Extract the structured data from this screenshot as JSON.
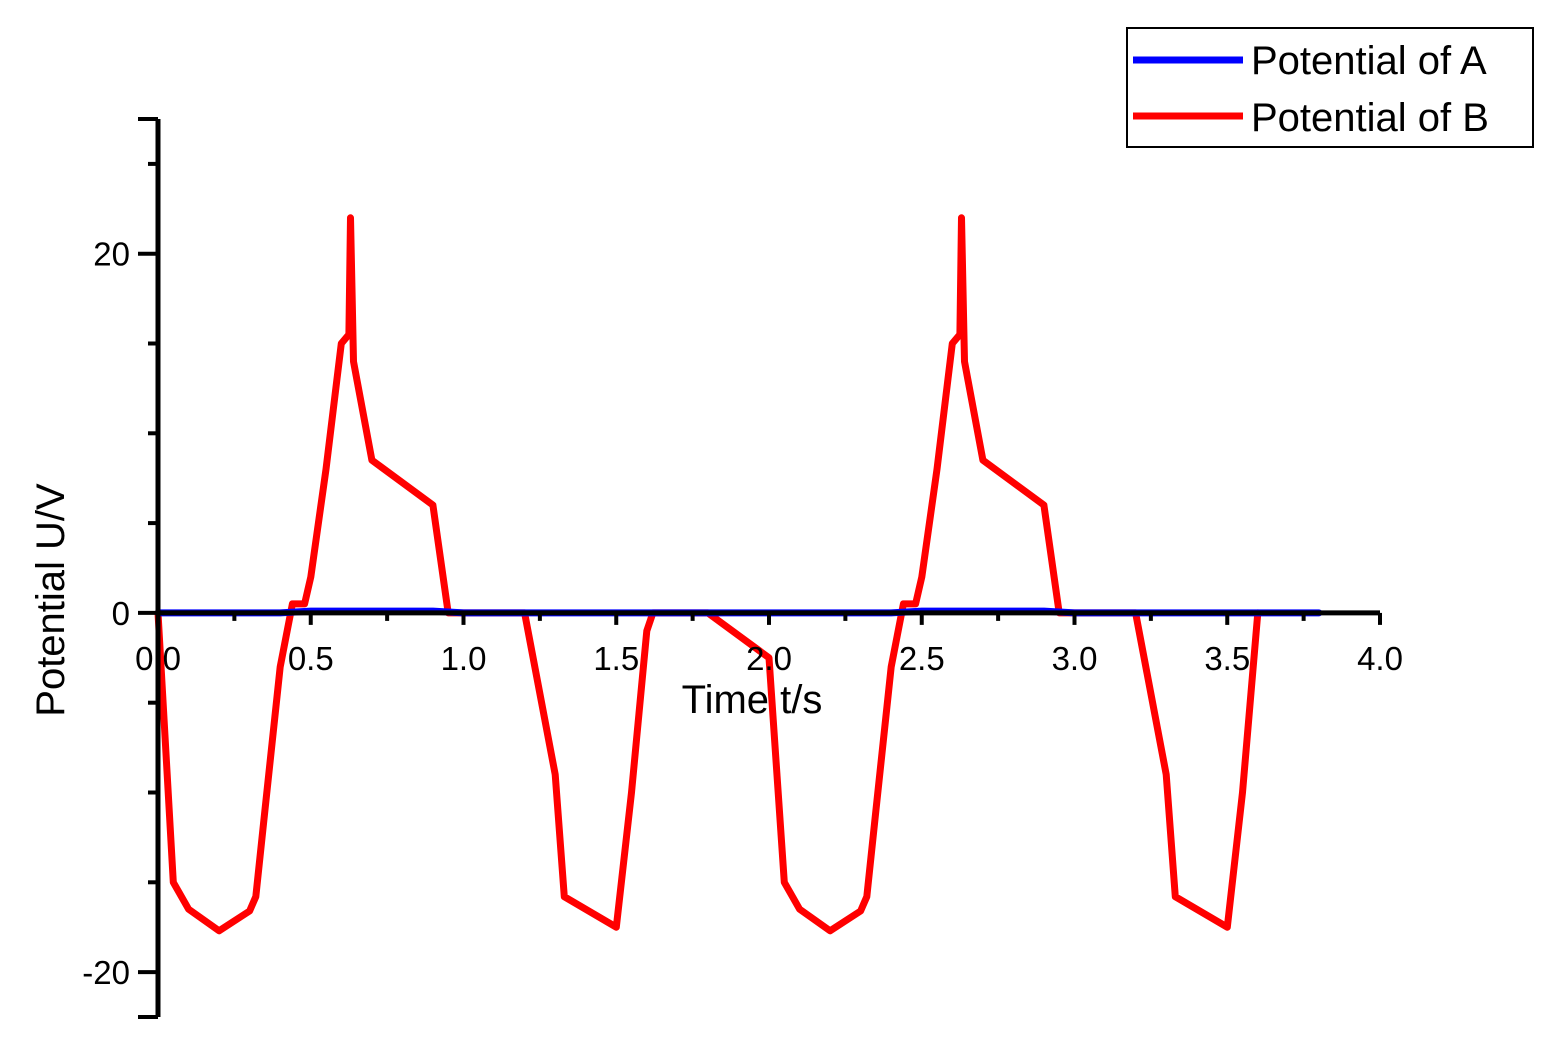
{
  "chart_data": {
    "type": "line",
    "xlabel": "Time t/s",
    "ylabel": "Potential U/V",
    "xlim": [
      0.0,
      4.0
    ],
    "ylim": [
      -22.5,
      27.5
    ],
    "x_ticks": [
      0.0,
      0.5,
      1.0,
      1.5,
      2.0,
      2.5,
      3.0,
      3.5,
      4.0
    ],
    "x_tick_labels": [
      "0.0",
      "0.5",
      "1.0",
      "1.5",
      "2.0",
      "2.5",
      "3.0",
      "3.5",
      "4.0"
    ],
    "y_ticks": [
      -20,
      0,
      20
    ],
    "y_tick_labels": [
      "-20",
      "0",
      "20"
    ],
    "legend_position": "top-right",
    "grid": false,
    "series": [
      {
        "name": "Potential of A",
        "color": "#0000ff",
        "x": [
          0.0,
          0.4,
          0.5,
          0.6,
          0.7,
          0.8,
          0.9,
          1.0,
          1.5,
          2.0,
          2.4,
          2.5,
          2.6,
          2.7,
          2.8,
          2.9,
          3.0,
          3.5,
          3.8
        ],
        "y": [
          0,
          0,
          0.1,
          0.1,
          0.1,
          0.1,
          0.1,
          0,
          0,
          0,
          0,
          0.1,
          0.1,
          0.1,
          0.1,
          0.1,
          0,
          0,
          0
        ]
      },
      {
        "name": "Potential of B",
        "color": "#ff0000",
        "x": [
          0.0,
          0.05,
          0.1,
          0.2,
          0.3,
          0.32,
          0.35,
          0.4,
          0.44,
          0.48,
          0.5,
          0.55,
          0.6,
          0.625,
          0.63,
          0.64,
          0.7,
          0.9,
          0.95,
          1.0,
          1.2,
          1.3,
          1.3,
          1.33,
          1.5,
          1.55,
          1.6,
          1.62,
          1.8,
          2.0,
          2.05,
          2.1,
          2.2,
          2.3,
          2.32,
          2.35,
          2.4,
          2.44,
          2.48,
          2.5,
          2.55,
          2.6,
          2.625,
          2.63,
          2.64,
          2.7,
          2.9,
          2.95,
          3.0,
          3.2,
          3.3,
          3.33,
          3.5,
          3.55,
          3.6
        ],
        "y": [
          0,
          -15,
          -16.5,
          -17.7,
          -16.6,
          -15.8,
          -11,
          -3,
          0.5,
          0.5,
          2,
          8,
          15,
          15.5,
          22,
          14,
          8.5,
          6,
          0,
          0,
          0,
          -9,
          -9,
          -15.8,
          -17.5,
          -10,
          -1,
          0,
          0,
          -2.5,
          -15,
          -16.5,
          -17.7,
          -16.6,
          -15.8,
          -11,
          -3,
          0.5,
          0.5,
          2,
          8,
          15,
          15.5,
          22,
          14,
          8.5,
          6,
          0,
          0,
          0,
          -9,
          -15.8,
          -17.5,
          -10,
          0
        ]
      }
    ]
  }
}
